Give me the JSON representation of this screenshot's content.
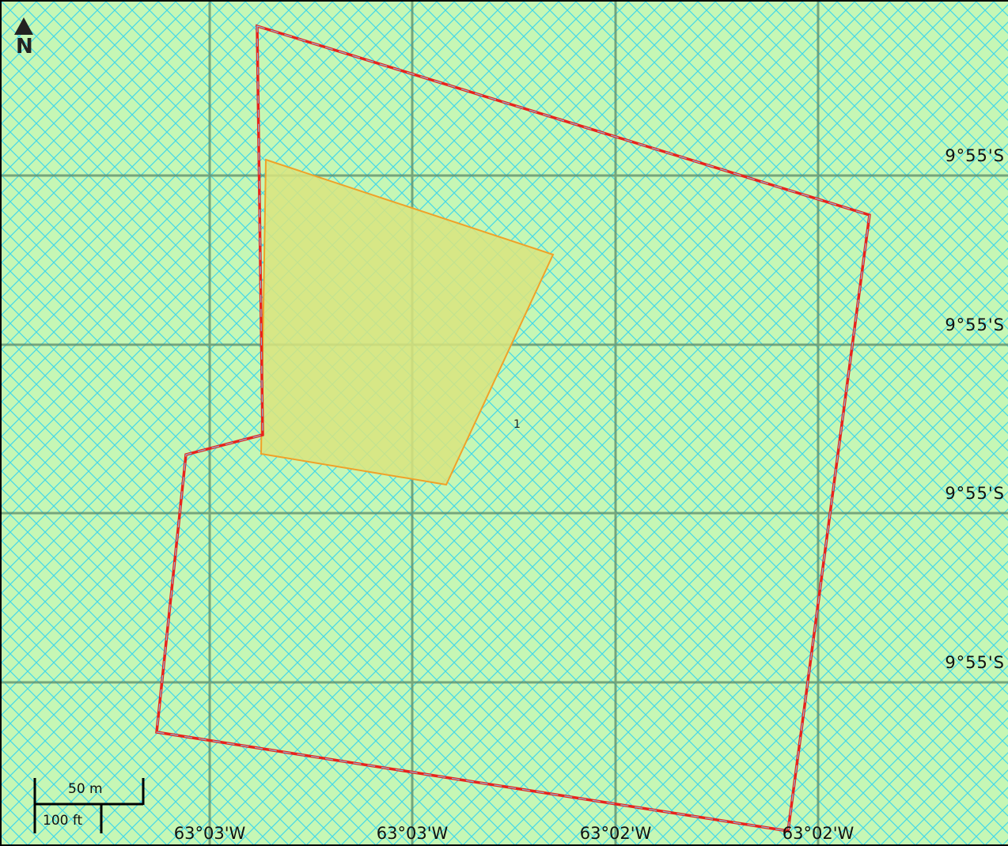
{
  "colors": {
    "background": "#c6f7b5",
    "hatch": "#45d8e8",
    "graticule": "#5b8a6a",
    "parcel_outline": "#e8231c",
    "parcel_outline_dash": "#8fb6d8",
    "subparcel_fill": "#d9e47e",
    "subparcel_outline": "#f0a128"
  },
  "north_arrow": {
    "icon": "north-arrow-icon",
    "letter": "N"
  },
  "lat_labels": [
    "9°55'S",
    "9°55'S",
    "9°55'S",
    "9°55'S"
  ],
  "lon_labels": [
    "63°03'W",
    "63°03'W",
    "63°02'W",
    "63°02'W"
  ],
  "parcel_label": "1",
  "scale_bar": {
    "metric": "50 m",
    "imperial": "100 ft"
  }
}
